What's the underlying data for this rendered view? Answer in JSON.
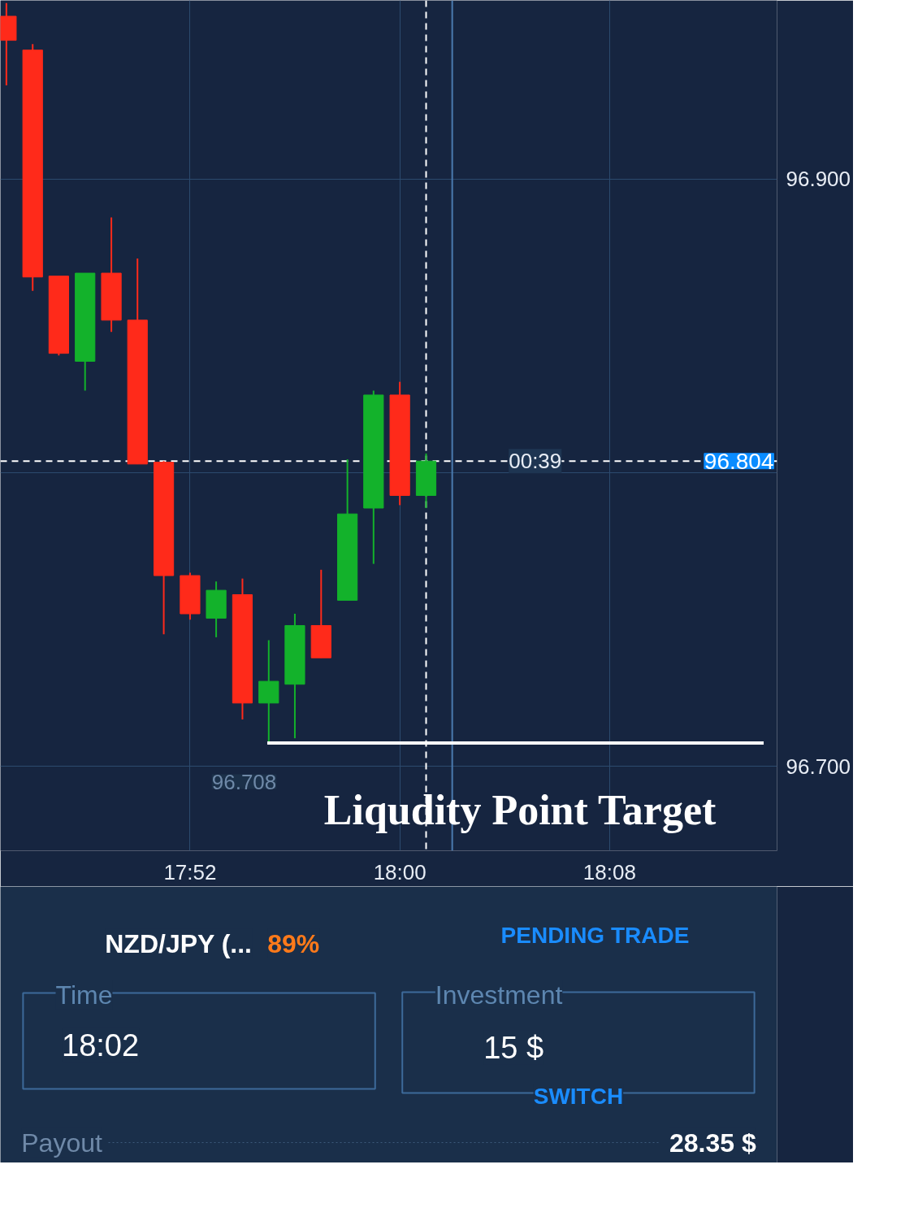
{
  "chart_data": {
    "type": "candlestick",
    "x": [
      17.75,
      17.7667,
      17.7833,
      17.8,
      17.8167,
      17.8333,
      17.85,
      17.8667,
      17.8833,
      17.9,
      17.9167,
      17.9333,
      17.95,
      17.9667,
      17.9833,
      18,
      18.0167
    ],
    "ohlc": [
      [
        96.9555,
        96.96,
        96.932,
        96.9473
      ],
      [
        96.944,
        96.946,
        96.862,
        96.8667
      ],
      [
        96.867,
        96.867,
        96.84,
        96.8407
      ],
      [
        96.838,
        96.868,
        96.828,
        96.868
      ],
      [
        96.868,
        96.887,
        96.848,
        96.852
      ],
      [
        96.852,
        96.873,
        96.803,
        96.803
      ],
      [
        96.8036,
        96.804,
        96.745,
        96.765
      ],
      [
        96.765,
        96.766,
        96.75,
        96.752
      ],
      [
        96.7505,
        96.763,
        96.744,
        96.76
      ],
      [
        96.7585,
        96.764,
        96.716,
        96.7216
      ],
      [
        96.7216,
        96.743,
        96.708,
        96.729
      ],
      [
        96.728,
        96.752,
        96.7096,
        96.748
      ],
      [
        96.748,
        96.767,
        96.737,
        96.737
      ],
      [
        96.7566,
        96.8046,
        96.7566,
        96.786
      ],
      [
        96.788,
        96.828,
        96.769,
        96.8265
      ],
      [
        96.8265,
        96.831,
        96.789,
        96.7923
      ],
      [
        96.7923,
        96.8066,
        96.788,
        96.804
      ]
    ],
    "colors": [
      "#ff2a1a",
      "#ff2a1a",
      "#ff2a1a",
      "#13b22b",
      "#ff2a1a",
      "#ff2a1a",
      "#ff2a1a",
      "#ff2a1a",
      "#13b22b",
      "#ff2a1a",
      "#13b22b",
      "#13b22b",
      "#ff2a1a",
      "#13b22b",
      "#13b22b",
      "#ff2a1a",
      "#13b22b"
    ],
    "series": [
      {
        "type": "line",
        "color": "#ffffff",
        "x": [
          17.9158,
          18.2312
        ],
        "values": [
          96.708,
          96.708
        ]
      }
    ],
    "xlim": [
      17.7462,
      18.2397
    ],
    "ylim": [
      96.6713,
      96.9609
    ],
    "xticks": [
      {
        "value": 17.8667,
        "label": "17:52"
      },
      {
        "value": 18,
        "label": "18:00"
      },
      {
        "value": 18.1333,
        "label": "18:08"
      }
    ],
    "yticks": [
      {
        "value": 96.7,
        "label": "96.700"
      },
      {
        "value": 96.8,
        "label": null
      },
      {
        "value": 96.9,
        "label": "96.900"
      }
    ],
    "grid": true,
    "ref_lines": [
      {
        "axis": "y",
        "value": 96.804,
        "label": "96.804",
        "color": "#ffffff",
        "line_style": "dashed"
      },
      {
        "axis": "x",
        "value": 18.0167,
        "label": null,
        "color": "#ffffff",
        "line_style": "dashed"
      },
      {
        "axis": "x",
        "value": 18.0333,
        "label": null,
        "color": "#4a7ab0",
        "line_style": "solid"
      }
    ],
    "annotations": [
      {
        "text": "00:39",
        "x": 18.086,
        "y": 96.804
      },
      "96.708",
      "Liqudity Point Target",
      "NZD/JPY (...",
      "89%",
      "PENDING TRADE",
      "Time",
      "18:02",
      "Investment",
      "15 $",
      "SWITCH",
      "Payout",
      "28.35 $"
    ]
  }
}
